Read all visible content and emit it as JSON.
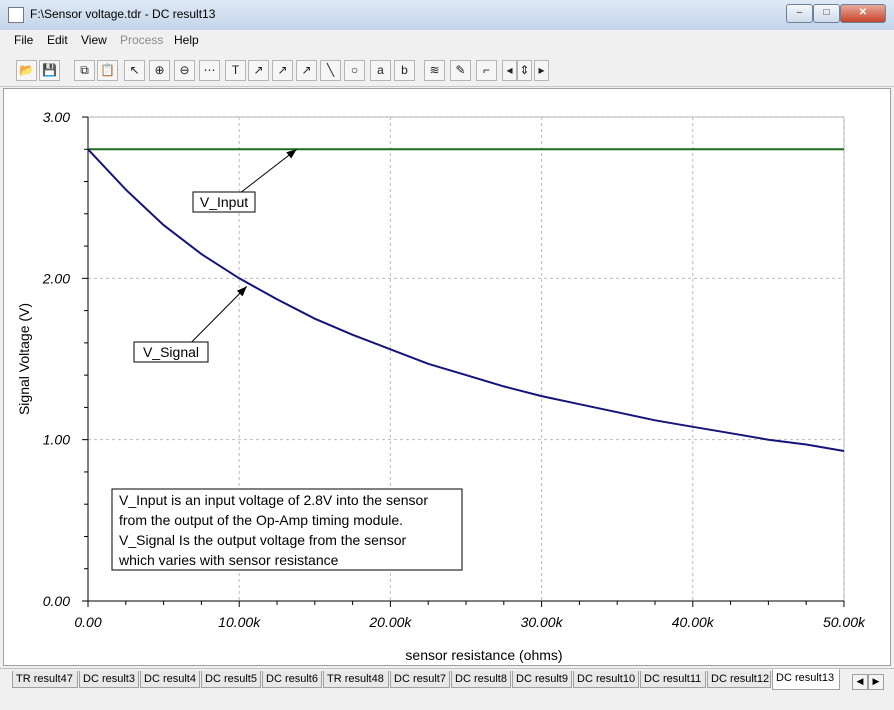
{
  "window": {
    "title": "F:\\Sensor voltage.tdr - DC result13",
    "minimize": "‒",
    "maximize": "□",
    "close": "✕"
  },
  "menu": [
    {
      "label": "File"
    },
    {
      "label": "Edit"
    },
    {
      "label": "View"
    },
    {
      "label": "Process",
      "disabled": true
    },
    {
      "label": "Help"
    }
  ],
  "toolbar": {
    "buttons": [
      "open-icon",
      "save-icon",
      "copy-icon",
      "paste-icon",
      "pointer-icon",
      "zoom-in-icon",
      "zoom-out-icon",
      "grid-icon",
      "text-tool-icon",
      "label-tool-1-icon",
      "label-tool-2-icon",
      "label-tool-3-icon",
      "line-tool-icon",
      "circle-tool-icon",
      "cursor-a-icon",
      "cursor-b-icon",
      "curve-color-icon",
      "picker-icon",
      "step-icon",
      "nav-left-icon",
      "nav-up-down-icon",
      "nav-right-icon"
    ],
    "glyphs": [
      "📂",
      "💾",
      "⧉",
      "📋",
      "↖",
      "⊕",
      "⊖",
      "⋯",
      "T",
      "↗",
      "↗",
      "↗",
      "╲",
      "○",
      "a",
      "b",
      "≋",
      "✎",
      "⌐",
      "◂",
      "⇕",
      "▸"
    ]
  },
  "tabs": [
    {
      "label": "TR result47"
    },
    {
      "label": "DC result3"
    },
    {
      "label": "DC result4"
    },
    {
      "label": "DC result5"
    },
    {
      "label": "DC result6"
    },
    {
      "label": "TR result48"
    },
    {
      "label": "DC result7"
    },
    {
      "label": "DC result8"
    },
    {
      "label": "DC result9"
    },
    {
      "label": "DC result10"
    },
    {
      "label": "DC result11"
    },
    {
      "label": "DC result12"
    },
    {
      "label": "DC result13",
      "active": true
    }
  ],
  "tab_scroll": {
    "left": "◀",
    "right": "▶"
  },
  "chart_data": {
    "type": "line",
    "xlabel": "sensor resistance (ohms)",
    "ylabel": "Signal Voltage (V)",
    "xlim": [
      0,
      50000
    ],
    "ylim": [
      0,
      3
    ],
    "xticks": [
      {
        "value": 0,
        "label": "0.00"
      },
      {
        "value": 10000,
        "label": "10.00k"
      },
      {
        "value": 20000,
        "label": "20.00k"
      },
      {
        "value": 30000,
        "label": "30.00k"
      },
      {
        "value": 40000,
        "label": "40.00k"
      },
      {
        "value": 50000,
        "label": "50.00k"
      }
    ],
    "yticks": [
      {
        "value": 0,
        "label": "0.00"
      },
      {
        "value": 1,
        "label": "1.00"
      },
      {
        "value": 2,
        "label": "2.00"
      },
      {
        "value": 3,
        "label": "3.00"
      }
    ],
    "grid": true,
    "series": [
      {
        "name": "V_Input",
        "color": "#1a6e1a",
        "x": [
          0,
          50000
        ],
        "y": [
          2.8,
          2.8
        ]
      },
      {
        "name": "V_Signal",
        "color": "#14147a",
        "x": [
          0,
          2500,
          5000,
          7500,
          10000,
          12500,
          15000,
          17500,
          20000,
          22500,
          25000,
          27500,
          30000,
          32500,
          35000,
          37500,
          40000,
          42500,
          45000,
          47500,
          50000
        ],
        "y": [
          2.8,
          2.55,
          2.33,
          2.15,
          2.0,
          1.87,
          1.75,
          1.65,
          1.56,
          1.47,
          1.4,
          1.33,
          1.27,
          1.22,
          1.17,
          1.12,
          1.08,
          1.04,
          1.0,
          0.97,
          0.93
        ]
      }
    ],
    "annotations": [
      {
        "text": "V_Input",
        "target": [
          13800,
          2.8
        ]
      },
      {
        "text": "V_Signal",
        "target": [
          10500,
          1.95
        ]
      }
    ],
    "note": [
      "V_Input is an input voltage of 2.8V into the sensor",
      "from the output of the Op-Amp timing module.",
      "V_Signal Is the output voltage from the sensor",
      "which varies with sensor resistance"
    ]
  }
}
